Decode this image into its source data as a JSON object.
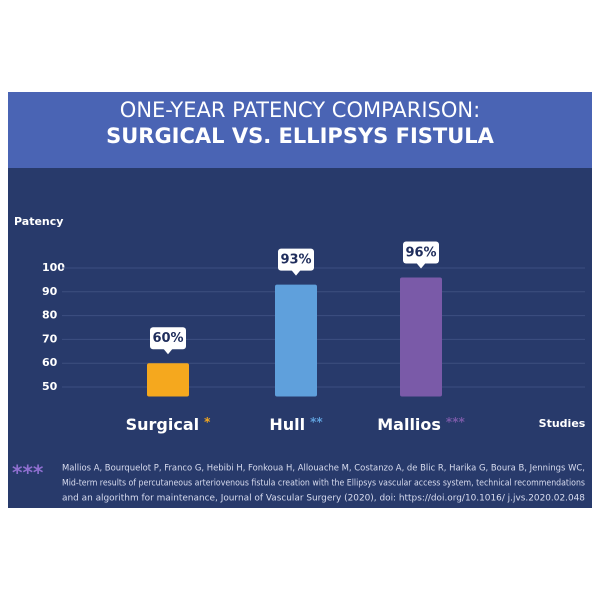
{
  "chart_data": {
    "type": "bar",
    "title": "ONE-YEAR PATENCY COMPARISON:",
    "subtitle": "SURGICAL VS. ELLIPSYS FISTULA",
    "y_label": "Patency",
    "x_label": "Studies",
    "categories": [
      "Surgical",
      "Hull",
      "Mallios"
    ],
    "markers": [
      "*",
      "**",
      "***"
    ],
    "values": [
      60,
      93,
      96
    ],
    "value_labels": [
      "60%",
      "93%",
      "96%"
    ],
    "colors": [
      "#f5a81e",
      "#5fa0dc",
      "#7a5aa8"
    ],
    "ylim": [
      46,
      100
    ],
    "yticks": [
      50,
      60,
      70,
      80,
      90,
      100
    ],
    "grid": true,
    "footnote": {
      "marker": "***",
      "lines": [
        "Mallios A, Bourquelot P, Franco G, Hebibi H, Fonkoua H, Allouache M, Costanzo A, de Blic R, Harika G, Boura B, Jennings WC,",
        "Mid-term results of percutaneous arteriovenous fistula creation with the Ellipsys vascular access system, technical recommendations",
        "and an algorithm for maintenance, Journal of Vascular Surgery (2020), doi: https://doi.org/10.1016/ j.jvs.2020.02.048"
      ]
    }
  }
}
